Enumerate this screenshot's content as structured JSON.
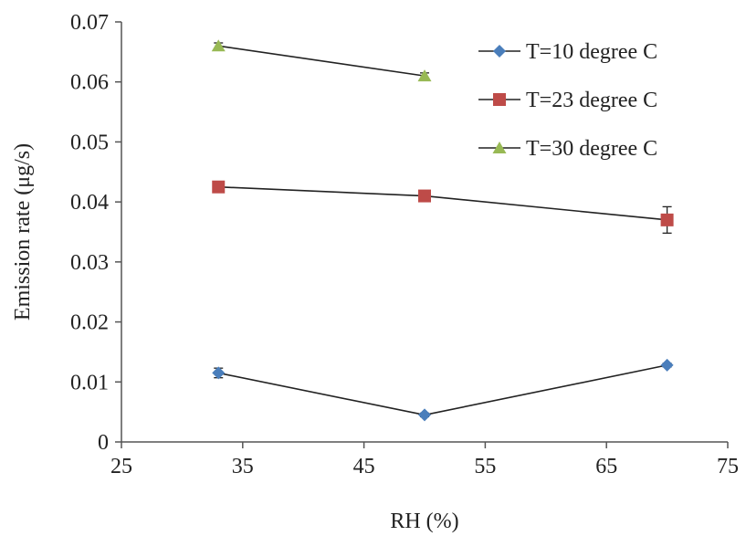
{
  "chart_data": {
    "type": "line",
    "title": "",
    "xlabel": "RH (%)",
    "ylabel": "Emission rate (μg/s)",
    "xlim": [
      25,
      75
    ],
    "ylim": [
      0,
      0.07
    ],
    "xticks": [
      25,
      35,
      45,
      55,
      65,
      75
    ],
    "yticks": [
      0,
      0.01,
      0.02,
      0.03,
      0.04,
      0.05,
      0.06,
      0.07
    ],
    "xtick_labels": [
      "25",
      "35",
      "45",
      "55",
      "65",
      "75"
    ],
    "ytick_labels": [
      "0",
      "0.01",
      "0.02",
      "0.03",
      "0.04",
      "0.05",
      "0.06",
      "0.07"
    ],
    "grid": false,
    "legend_position": "top-right",
    "series": [
      {
        "name": "T=10 degree C",
        "marker": "diamond",
        "color": "#4a7ebb",
        "x": [
          33,
          50,
          70
        ],
        "y": [
          0.0115,
          0.0045,
          0.0128
        ],
        "error": [
          0.0008,
          0.0003,
          0.0003
        ]
      },
      {
        "name": "T=23 degree C",
        "marker": "square",
        "color": "#be4b48",
        "x": [
          33,
          50,
          70
        ],
        "y": [
          0.0425,
          0.041,
          0.037
        ],
        "error": [
          0.0004,
          0.0004,
          0.0022
        ]
      },
      {
        "name": "T=30 degree C",
        "marker": "triangle",
        "color": "#98b954",
        "x": [
          33,
          50
        ],
        "y": [
          0.066,
          0.061
        ],
        "error": [
          0.0005,
          0.0005
        ]
      }
    ]
  }
}
